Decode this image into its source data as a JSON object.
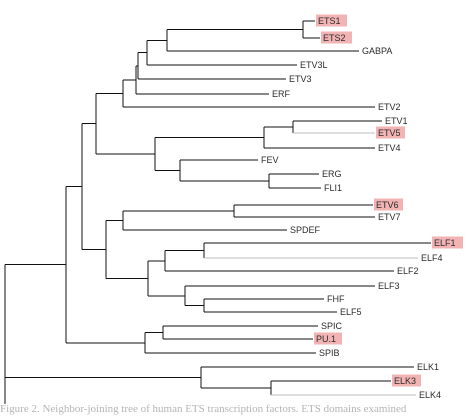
{
  "tree": {
    "leaves": [
      {
        "id": "ETS1",
        "label": "ETS1",
        "highlighted": true
      },
      {
        "id": "ETS2",
        "label": "ETS2",
        "highlighted": true
      },
      {
        "id": "GABPA",
        "label": "GABPA",
        "highlighted": false
      },
      {
        "id": "ETV3L",
        "label": "ETV3L",
        "highlighted": false
      },
      {
        "id": "ETV3",
        "label": "ETV3",
        "highlighted": false
      },
      {
        "id": "ERF",
        "label": "ERF",
        "highlighted": false
      },
      {
        "id": "ETV2",
        "label": "ETV2",
        "highlighted": false
      },
      {
        "id": "ETV1",
        "label": "ETV1",
        "highlighted": false
      },
      {
        "id": "ETV5",
        "label": "ETV5",
        "highlighted": true
      },
      {
        "id": "ETV4",
        "label": "ETV4",
        "highlighted": false
      },
      {
        "id": "FEV",
        "label": "FEV",
        "highlighted": false
      },
      {
        "id": "ERG",
        "label": "ERG",
        "highlighted": false
      },
      {
        "id": "FLI1",
        "label": "FLI1",
        "highlighted": false
      },
      {
        "id": "ETV6",
        "label": "ETV6",
        "highlighted": true
      },
      {
        "id": "ETV7",
        "label": "ETV7",
        "highlighted": false
      },
      {
        "id": "SPDEF",
        "label": "SPDEF",
        "highlighted": false
      },
      {
        "id": "ELF1",
        "label": "ELF1",
        "highlighted": true
      },
      {
        "id": "ELF4",
        "label": "ELF4",
        "highlighted": false
      },
      {
        "id": "ELF2",
        "label": "ELF2",
        "highlighted": false
      },
      {
        "id": "ELF3",
        "label": "ELF3",
        "highlighted": false
      },
      {
        "id": "FHF",
        "label": "FHF",
        "highlighted": false
      },
      {
        "id": "ELF5",
        "label": "ELF5",
        "highlighted": false
      },
      {
        "id": "SPIC",
        "label": "SPIC",
        "highlighted": false
      },
      {
        "id": "PU1",
        "label": "PU.1",
        "highlighted": true
      },
      {
        "id": "SPIB",
        "label": "SPIB",
        "highlighted": false
      },
      {
        "id": "ELK1",
        "label": "ELK1",
        "highlighted": false
      },
      {
        "id": "ELK3",
        "label": "ELK3",
        "highlighted": true
      },
      {
        "id": "ELK4",
        "label": "ELK4",
        "highlighted": false
      }
    ],
    "topology": "((((((((ETS1,ETS2),GABPA),ETV3L),ETV3),ERF),ETV2),((((ETV1,ETV5),ETV4),(FEV,(ERG,FLI1))))),(((ETV6,ETV7),SPDEF),((ELF1,ELF4),ELF2),(ELF3,(FHF,ELF5)))),((SPIC,PU.1),SPIB)),(ELK1,(ELK3,ELK4))",
    "colors": {
      "branch": "#111111",
      "light_branch": "#bdbdbd",
      "highlight": "#f2b3b5",
      "label": "#2b2b2b"
    }
  },
  "caption": {
    "text": "Figure 2. Neighbor-joining tree of human ETS transcription factors. ETS domains examined"
  }
}
